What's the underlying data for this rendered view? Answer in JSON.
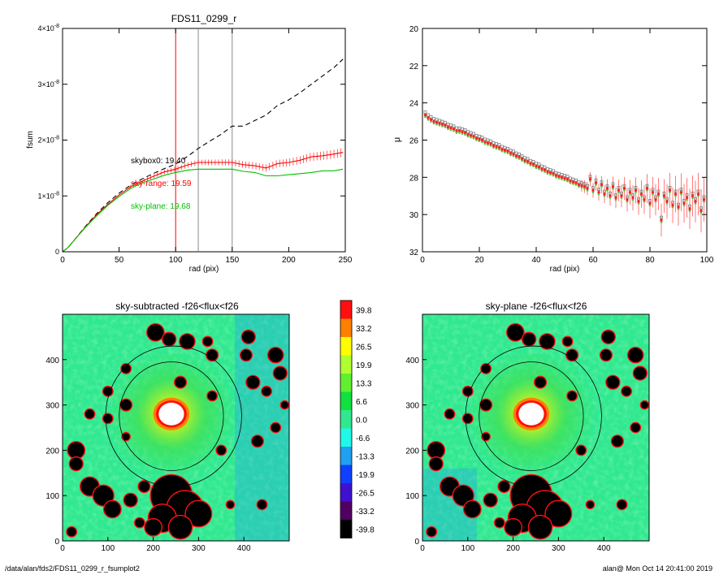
{
  "footer": {
    "path": "/data/alan/fds2/FDS11_0299_r_fsumplot2",
    "user_date": "alan@  Mon Oct 14 20:41:00 2019"
  },
  "chart_data": [
    {
      "id": "fsum",
      "type": "line",
      "title": "FDS11_0299_r",
      "xlabel": "rad (pix)",
      "ylabel": "fsum",
      "xlim": [
        0,
        250
      ],
      "ylim": [
        0,
        4e-08
      ],
      "x_ticks": [
        0,
        50,
        100,
        150,
        200,
        250
      ],
      "y_ticks": [
        {
          "value": 0,
          "mantissa": "0",
          "exp": ""
        },
        {
          "value": 1e-08,
          "mantissa": "1×10",
          "exp": "-8"
        },
        {
          "value": 2e-08,
          "mantissa": "2×10",
          "exp": "-8"
        },
        {
          "value": 3e-08,
          "mantissa": "3×10",
          "exp": "-8"
        },
        {
          "value": 4e-08,
          "mantissa": "4×10",
          "exp": "-8"
        }
      ],
      "vlines": [
        {
          "x": 100,
          "color": "#ff0000"
        },
        {
          "x": 120,
          "color": "#888888"
        },
        {
          "x": 150,
          "color": "#888888"
        }
      ],
      "annotations": [
        {
          "text": "skybox0: 19.40",
          "color": "#000000",
          "x": 60,
          "y": 1.6e-08
        },
        {
          "text": "sky-range: 19.59",
          "color": "#ff0000",
          "x": 60,
          "y": 1.2e-08
        },
        {
          "text": "sky-plane: 19.68",
          "color": "#00c000",
          "x": 60,
          "y": 8e-09
        }
      ],
      "series": [
        {
          "style": "dashed",
          "color": "#000000",
          "x": [
            0,
            5,
            10,
            20,
            30,
            40,
            50,
            60,
            70,
            80,
            90,
            100,
            110,
            120,
            130,
            140,
            150,
            160,
            170,
            180,
            190,
            200,
            210,
            220,
            230,
            240,
            248
          ],
          "y": [
            0,
            8e-10,
            2e-09,
            4.5e-09,
            6.8e-09,
            8.8e-09,
            1.05e-08,
            1.19e-08,
            1.3e-08,
            1.4e-08,
            1.49e-08,
            1.57e-08,
            1.7e-08,
            1.85e-08,
            1.98e-08,
            2.1e-08,
            2.25e-08,
            2.25e-08,
            2.35e-08,
            2.45e-08,
            2.62e-08,
            2.72e-08,
            2.85e-08,
            3e-08,
            3.15e-08,
            3.3e-08,
            3.45e-08
          ]
        },
        {
          "style": "solid",
          "color": "#ff0000",
          "errorbars": true,
          "x": [
            0,
            5,
            10,
            20,
            30,
            40,
            50,
            60,
            70,
            80,
            90,
            100,
            110,
            120,
            130,
            140,
            150,
            160,
            170,
            180,
            190,
            200,
            210,
            220,
            230,
            240,
            248
          ],
          "y": [
            0,
            8e-10,
            2e-09,
            4.4e-09,
            6.6e-09,
            8.5e-09,
            1.02e-08,
            1.16e-08,
            1.26e-08,
            1.35e-08,
            1.43e-08,
            1.48e-08,
            1.55e-08,
            1.6e-08,
            1.6e-08,
            1.6e-08,
            1.6e-08,
            1.56e-08,
            1.54e-08,
            1.5e-08,
            1.58e-08,
            1.6e-08,
            1.64e-08,
            1.7e-08,
            1.72e-08,
            1.75e-08,
            1.78e-08
          ]
        },
        {
          "style": "solid",
          "color": "#00c000",
          "x": [
            0,
            5,
            10,
            20,
            30,
            40,
            50,
            60,
            70,
            80,
            90,
            100,
            110,
            120,
            130,
            140,
            150,
            160,
            170,
            180,
            190,
            200,
            210,
            220,
            230,
            240,
            248
          ],
          "y": [
            0,
            8e-10,
            2e-09,
            4.3e-09,
            6.4e-09,
            8.3e-09,
            9.9e-09,
            1.13e-08,
            1.23e-08,
            1.3e-08,
            1.37e-08,
            1.42e-08,
            1.46e-08,
            1.48e-08,
            1.48e-08,
            1.48e-08,
            1.48e-08,
            1.44e-08,
            1.42e-08,
            1.36e-08,
            1.36e-08,
            1.38e-08,
            1.4e-08,
            1.42e-08,
            1.45e-08,
            1.45e-08,
            1.48e-08
          ]
        }
      ]
    },
    {
      "id": "mu",
      "type": "scatter",
      "title": "",
      "xlabel": "rad (pix)",
      "ylabel": "μ",
      "xlim": [
        0,
        100
      ],
      "ylim": [
        32,
        20
      ],
      "x_ticks": [
        0,
        20,
        40,
        60,
        80,
        100
      ],
      "y_ticks": [
        20,
        22,
        24,
        26,
        28,
        30,
        32
      ],
      "points": [
        {
          "x": 1,
          "y": 24.65
        },
        {
          "x": 2,
          "y": 24.8
        },
        {
          "x": 3,
          "y": 24.9
        },
        {
          "x": 4,
          "y": 25.0
        },
        {
          "x": 5,
          "y": 25.05
        },
        {
          "x": 6,
          "y": 25.1
        },
        {
          "x": 7,
          "y": 25.15
        },
        {
          "x": 8,
          "y": 25.2
        },
        {
          "x": 9,
          "y": 25.3
        },
        {
          "x": 10,
          "y": 25.35
        },
        {
          "x": 11,
          "y": 25.4
        },
        {
          "x": 12,
          "y": 25.5
        },
        {
          "x": 13,
          "y": 25.5
        },
        {
          "x": 14,
          "y": 25.55
        },
        {
          "x": 15,
          "y": 25.6
        },
        {
          "x": 16,
          "y": 25.7
        },
        {
          "x": 17,
          "y": 25.75
        },
        {
          "x": 18,
          "y": 25.8
        },
        {
          "x": 19,
          "y": 25.9
        },
        {
          "x": 20,
          "y": 25.95
        },
        {
          "x": 21,
          "y": 26.0
        },
        {
          "x": 22,
          "y": 26.1
        },
        {
          "x": 23,
          "y": 26.15
        },
        {
          "x": 24,
          "y": 26.2
        },
        {
          "x": 25,
          "y": 26.3
        },
        {
          "x": 26,
          "y": 26.35
        },
        {
          "x": 27,
          "y": 26.4
        },
        {
          "x": 28,
          "y": 26.5
        },
        {
          "x": 29,
          "y": 26.55
        },
        {
          "x": 30,
          "y": 26.6
        },
        {
          "x": 31,
          "y": 26.7
        },
        {
          "x": 32,
          "y": 26.75
        },
        {
          "x": 33,
          "y": 26.85
        },
        {
          "x": 34,
          "y": 26.9
        },
        {
          "x": 35,
          "y": 27.0
        },
        {
          "x": 36,
          "y": 27.1
        },
        {
          "x": 37,
          "y": 27.15
        },
        {
          "x": 38,
          "y": 27.25
        },
        {
          "x": 39,
          "y": 27.3
        },
        {
          "x": 40,
          "y": 27.4
        },
        {
          "x": 41,
          "y": 27.45
        },
        {
          "x": 42,
          "y": 27.55
        },
        {
          "x": 43,
          "y": 27.6
        },
        {
          "x": 44,
          "y": 27.7
        },
        {
          "x": 45,
          "y": 27.75
        },
        {
          "x": 46,
          "y": 27.8
        },
        {
          "x": 47,
          "y": 27.9
        },
        {
          "x": 48,
          "y": 27.95
        },
        {
          "x": 49,
          "y": 28.0
        },
        {
          "x": 50,
          "y": 28.05
        },
        {
          "x": 51,
          "y": 28.1
        },
        {
          "x": 52,
          "y": 28.2
        },
        {
          "x": 53,
          "y": 28.25
        },
        {
          "x": 54,
          "y": 28.3
        },
        {
          "x": 55,
          "y": 28.4
        },
        {
          "x": 56,
          "y": 28.45
        },
        {
          "x": 57,
          "y": 28.5
        },
        {
          "x": 58,
          "y": 28.6
        },
        {
          "x": 59,
          "y": 28.1
        },
        {
          "x": 60,
          "y": 28.7
        },
        {
          "x": 61,
          "y": 28.3
        },
        {
          "x": 62,
          "y": 28.8
        },
        {
          "x": 63,
          "y": 28.4
        },
        {
          "x": 64,
          "y": 28.9
        },
        {
          "x": 65,
          "y": 28.6
        },
        {
          "x": 66,
          "y": 29.0
        },
        {
          "x": 67,
          "y": 28.5
        },
        {
          "x": 68,
          "y": 29.1
        },
        {
          "x": 69,
          "y": 28.7
        },
        {
          "x": 70,
          "y": 29.0
        },
        {
          "x": 71,
          "y": 28.6
        },
        {
          "x": 72,
          "y": 29.2
        },
        {
          "x": 73,
          "y": 28.8
        },
        {
          "x": 74,
          "y": 29.1
        },
        {
          "x": 75,
          "y": 28.7
        },
        {
          "x": 76,
          "y": 29.3
        },
        {
          "x": 77,
          "y": 28.9
        },
        {
          "x": 78,
          "y": 29.2
        },
        {
          "x": 79,
          "y": 28.6
        },
        {
          "x": 80,
          "y": 29.4
        },
        {
          "x": 81,
          "y": 28.8
        },
        {
          "x": 82,
          "y": 29.2
        },
        {
          "x": 83,
          "y": 28.9
        },
        {
          "x": 84,
          "y": 30.3
        },
        {
          "x": 85,
          "y": 29.0
        },
        {
          "x": 86,
          "y": 29.3
        },
        {
          "x": 87,
          "y": 28.7
        },
        {
          "x": 88,
          "y": 29.5
        },
        {
          "x": 89,
          "y": 28.9
        },
        {
          "x": 90,
          "y": 29.6
        },
        {
          "x": 91,
          "y": 28.8
        },
        {
          "x": 92,
          "y": 29.4
        },
        {
          "x": 93,
          "y": 29.1
        },
        {
          "x": 94,
          "y": 29.7
        },
        {
          "x": 95,
          "y": 29.0
        },
        {
          "x": 96,
          "y": 29.3
        },
        {
          "x": 97,
          "y": 28.9
        },
        {
          "x": 98,
          "y": 29.8
        },
        {
          "x": 99,
          "y": 29.2
        }
      ]
    },
    {
      "id": "img-subtracted",
      "type": "heatmap",
      "title": "sky-subtracted -f26<flux<f26",
      "xlim": [
        0,
        500
      ],
      "ylim": [
        0,
        500
      ],
      "x_ticks": [
        0,
        100,
        200,
        300,
        400
      ],
      "y_ticks": [
        0,
        100,
        200,
        300,
        400
      ]
    },
    {
      "id": "img-plane",
      "type": "heatmap",
      "title": "sky-plane -f26<flux<f26",
      "xlim": [
        0,
        500
      ],
      "ylim": [
        0,
        500
      ],
      "x_ticks": [
        0,
        100,
        200,
        300,
        400
      ],
      "y_ticks": [
        0,
        100,
        200,
        300,
        400
      ]
    },
    {
      "id": "colorbar",
      "type": "table",
      "levels": [
        {
          "label": "39.8",
          "color": "#ff1010"
        },
        {
          "label": "33.2",
          "color": "#ff8000"
        },
        {
          "label": "26.5",
          "color": "#ffff00"
        },
        {
          "label": "19.9",
          "color": "#b0ff30"
        },
        {
          "label": "13.3",
          "color": "#60f030"
        },
        {
          "label": "6.6",
          "color": "#10e040"
        },
        {
          "label": "0.0",
          "color": "#30e890"
        },
        {
          "label": "-6.6",
          "color": "#20f8e8"
        },
        {
          "label": "-13.3",
          "color": "#20a0f0"
        },
        {
          "label": "-19.9",
          "color": "#1040ff"
        },
        {
          "label": "-26.5",
          "color": "#4010d0"
        },
        {
          "label": "-33.2",
          "color": "#500060"
        },
        {
          "label": "-39.8",
          "color": "#000000"
        }
      ]
    }
  ]
}
